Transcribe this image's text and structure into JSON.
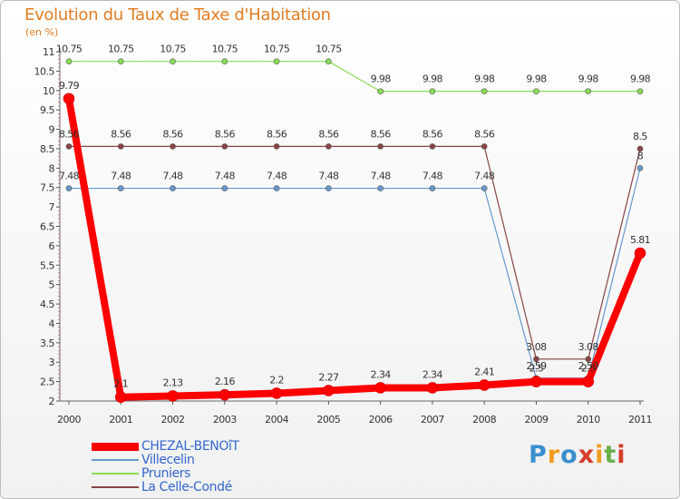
{
  "title": "Evolution du Taux de Taxe d'Habitation",
  "subtitle": "(en %)",
  "logo": [
    "P",
    "r",
    "o",
    "x",
    "i",
    "t",
    "i"
  ],
  "logo_colors": [
    "#3a8fcf",
    "#f29c1f",
    "#3a8fcf",
    "#d63b2a",
    "#f29c1f",
    "#6ab04c",
    "#d63b2a"
  ],
  "chart_data": {
    "type": "line",
    "x": [
      "2000",
      "2001",
      "2002",
      "2003",
      "2004",
      "2005",
      "2006",
      "2007",
      "2008",
      "2009",
      "2010",
      "2011"
    ],
    "ylim": [
      2,
      11
    ],
    "yticks": [
      "2",
      "2.5",
      "3",
      "3.5",
      "4",
      "4.5",
      "5",
      "5.5",
      "6",
      "6.5",
      "7",
      "7.5",
      "8",
      "8.5",
      "9",
      "9.5",
      "10",
      "10.5",
      "11"
    ],
    "grid": false,
    "legend_position": "bottom-left",
    "series": [
      {
        "name": "CHEZAL-BENOîT",
        "color": "#ff0000",
        "width": 8,
        "marker": 6,
        "values": [
          9.79,
          2.1,
          2.13,
          2.16,
          2.2,
          2.27,
          2.34,
          2.34,
          2.41,
          2.5,
          2.5,
          5.81
        ],
        "labels": [
          "9.79",
          "2.1",
          "2.13",
          "2.16",
          "2.2",
          "2.27",
          "2.34",
          "2.34",
          "2.41",
          "2.5",
          "2.5",
          "5.81"
        ]
      },
      {
        "name": "Villecelin",
        "color": "#6699cc",
        "width": 1.2,
        "marker": 3,
        "values": [
          7.48,
          7.48,
          7.48,
          7.48,
          7.48,
          7.48,
          7.48,
          7.48,
          7.48,
          2.59,
          2.59,
          8
        ],
        "labels": [
          "7.48",
          "7.48",
          "7.48",
          "7.48",
          "7.48",
          "7.48",
          "7.48",
          "7.48",
          "7.48",
          "2.59",
          "2.59",
          "8"
        ]
      },
      {
        "name": "Pruniers",
        "color": "#88dd55",
        "width": 1.2,
        "marker": 3,
        "values": [
          10.75,
          10.75,
          10.75,
          10.75,
          10.75,
          10.75,
          9.98,
          9.98,
          9.98,
          9.98,
          9.98,
          9.98
        ],
        "labels": [
          "10.75",
          "10.75",
          "10.75",
          "10.75",
          "10.75",
          "10.75",
          "9.98",
          "9.98",
          "9.98",
          "9.98",
          "9.98",
          "9.98"
        ]
      },
      {
        "name": "La Celle-Condé",
        "color": "#884444",
        "width": 1.2,
        "marker": 3,
        "values": [
          8.56,
          8.56,
          8.56,
          8.56,
          8.56,
          8.56,
          8.56,
          8.56,
          8.56,
          3.08,
          3.08,
          8.5
        ],
        "labels": [
          "8.56",
          "8.56",
          "8.56",
          "8.56",
          "8.56",
          "8.56",
          "8.56",
          "8.56",
          "8.56",
          "3.08",
          "3.08",
          "8.5"
        ]
      }
    ]
  }
}
